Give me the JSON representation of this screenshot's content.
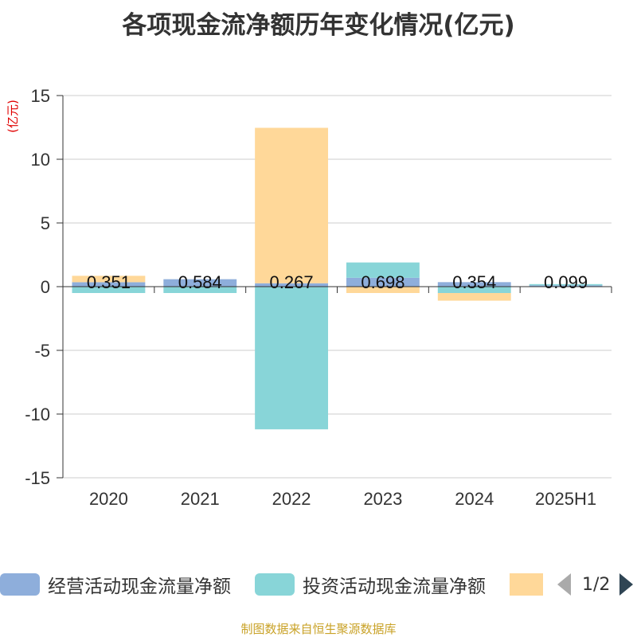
{
  "title": "各项现金流净额历年变化情况(亿元)",
  "source": "制图数据来自恒生聚源数据库",
  "legend": {
    "items": [
      {
        "label": "经营活动现金流量净额",
        "color": "#8eaedb"
      },
      {
        "label": "投资活动现金流量净额",
        "color": "#88d5d8"
      },
      {
        "label": "",
        "color": "#ffd899"
      }
    ],
    "page": "1/2"
  },
  "chart_data": {
    "type": "bar",
    "stacked": true,
    "title": "各项现金流净额历年变化情况(亿元)",
    "ylabel": "(亿元)",
    "ylim": [
      -15,
      15
    ],
    "yticks": [
      15,
      10,
      5,
      0,
      -5,
      -10,
      -15
    ],
    "grid": true,
    "legend_position": "bottom",
    "categories": [
      "2020",
      "2021",
      "2022",
      "2023",
      "2024",
      "2025H1"
    ],
    "series": [
      {
        "name": "经营活动现金流量净额",
        "color": "#8eaedb",
        "values": [
          0.351,
          0.584,
          0.267,
          0.698,
          0.354,
          0.099
        ],
        "labels": [
          "0.351",
          "0.584",
          "0.267",
          "0.698",
          "0.354",
          "0.099"
        ]
      },
      {
        "name": "投资活动现金流量净额",
        "color": "#88d5d8",
        "values": [
          -0.5,
          -0.5,
          -11.2,
          1.2,
          -0.5,
          0.1
        ]
      },
      {
        "color": "#ffd899",
        "values": [
          0.5,
          0.0,
          12.2,
          -0.5,
          -0.6,
          0.0
        ]
      }
    ]
  }
}
